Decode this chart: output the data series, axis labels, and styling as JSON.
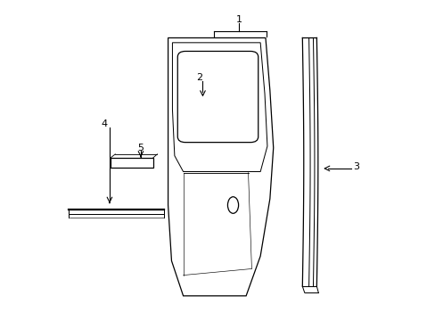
{
  "background_color": "#ffffff",
  "line_color": "#000000",
  "label_color": "#000000",
  "fig_width": 4.89,
  "fig_height": 3.6,
  "dpi": 100
}
